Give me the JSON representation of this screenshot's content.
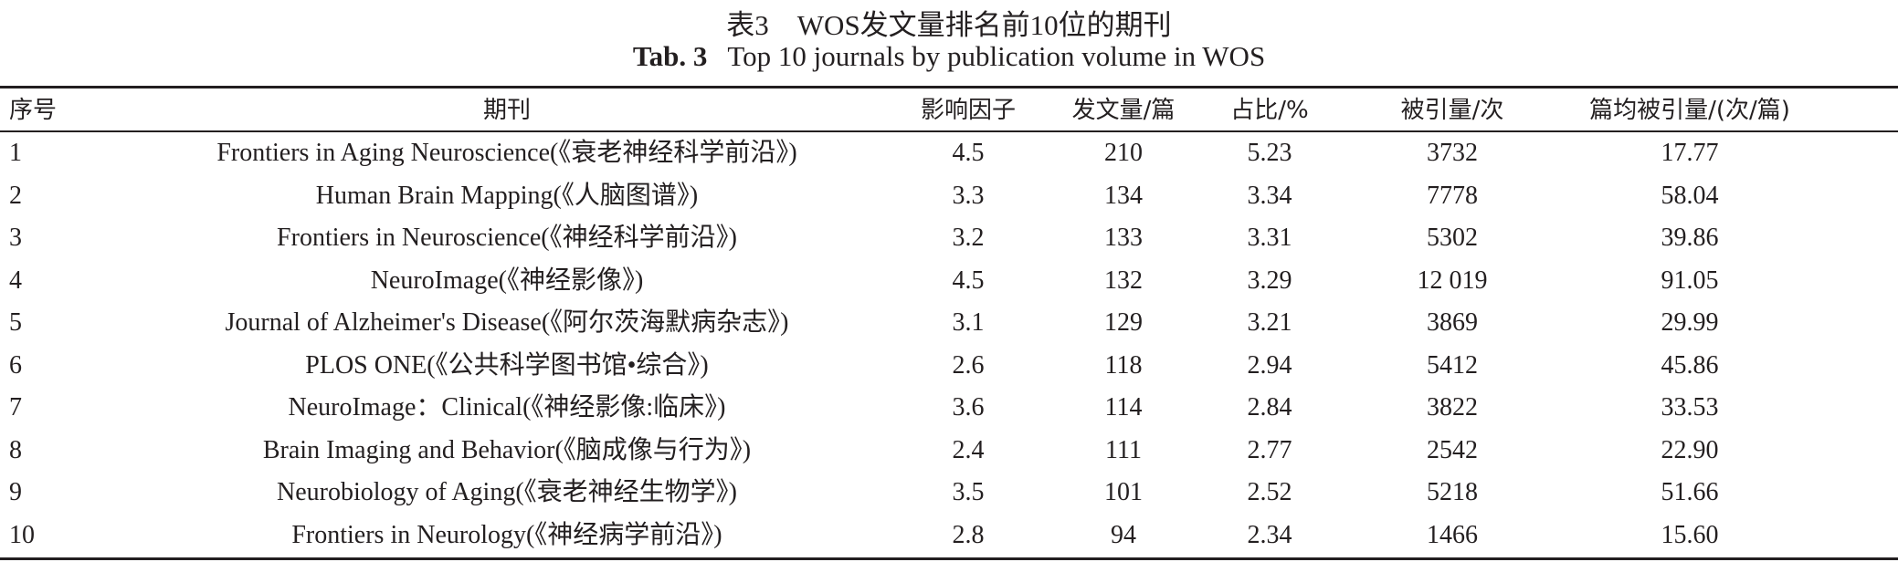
{
  "caption": {
    "title_cn": "表3　WOS发文量排名前10位的期刊",
    "label_en": "Tab. 3",
    "title_en": "Top 10 journals by publication volume in WOS"
  },
  "table": {
    "headers": [
      "序号",
      "期刊",
      "影响因子",
      "发文量/篇",
      "占比/%",
      "被引量/次",
      "篇均被引量/(次/篇)"
    ],
    "rows": [
      [
        "1",
        "Frontiers in Aging Neuroscience(《衰老神经科学前沿》)",
        "4.5",
        "210",
        "5.23",
        "3732",
        "17.77"
      ],
      [
        "2",
        "Human Brain Mapping(《人脑图谱》)",
        "3.3",
        "134",
        "3.34",
        "7778",
        "58.04"
      ],
      [
        "3",
        "Frontiers in Neuroscience(《神经科学前沿》)",
        "3.2",
        "133",
        "3.31",
        "5302",
        "39.86"
      ],
      [
        "4",
        "NeuroImage(《神经影像》)",
        "4.5",
        "132",
        "3.29",
        "12 019",
        "91.05"
      ],
      [
        "5",
        "Journal of Alzheimer's Disease(《阿尔茨海默病杂志》)",
        "3.1",
        "129",
        "3.21",
        "3869",
        "29.99"
      ],
      [
        "6",
        "PLOS ONE(《公共科学图书馆•综合》)",
        "2.6",
        "118",
        "2.94",
        "5412",
        "45.86"
      ],
      [
        "7",
        "NeuroImage：Clinical(《神经影像:临床》)",
        "3.6",
        "114",
        "2.84",
        "3822",
        "33.53"
      ],
      [
        "8",
        "Brain Imaging and Behavior(《脑成像与行为》)",
        "2.4",
        "111",
        "2.77",
        "2542",
        "22.90"
      ],
      [
        "9",
        "Neurobiology of Aging(《衰老神经生物学》)",
        "3.5",
        "101",
        "2.52",
        "5218",
        "51.66"
      ],
      [
        "10",
        "Frontiers in Neurology(《神经病学前沿》)",
        "2.8",
        "94",
        "2.34",
        "1466",
        "15.60"
      ]
    ]
  }
}
